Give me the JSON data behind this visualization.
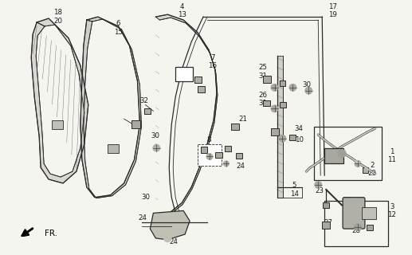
{
  "background_color": "#f5f5f0",
  "line_color": "#2a2a2a",
  "figsize": [
    5.17,
    3.2
  ],
  "dpi": 100,
  "fr_text": "FR."
}
